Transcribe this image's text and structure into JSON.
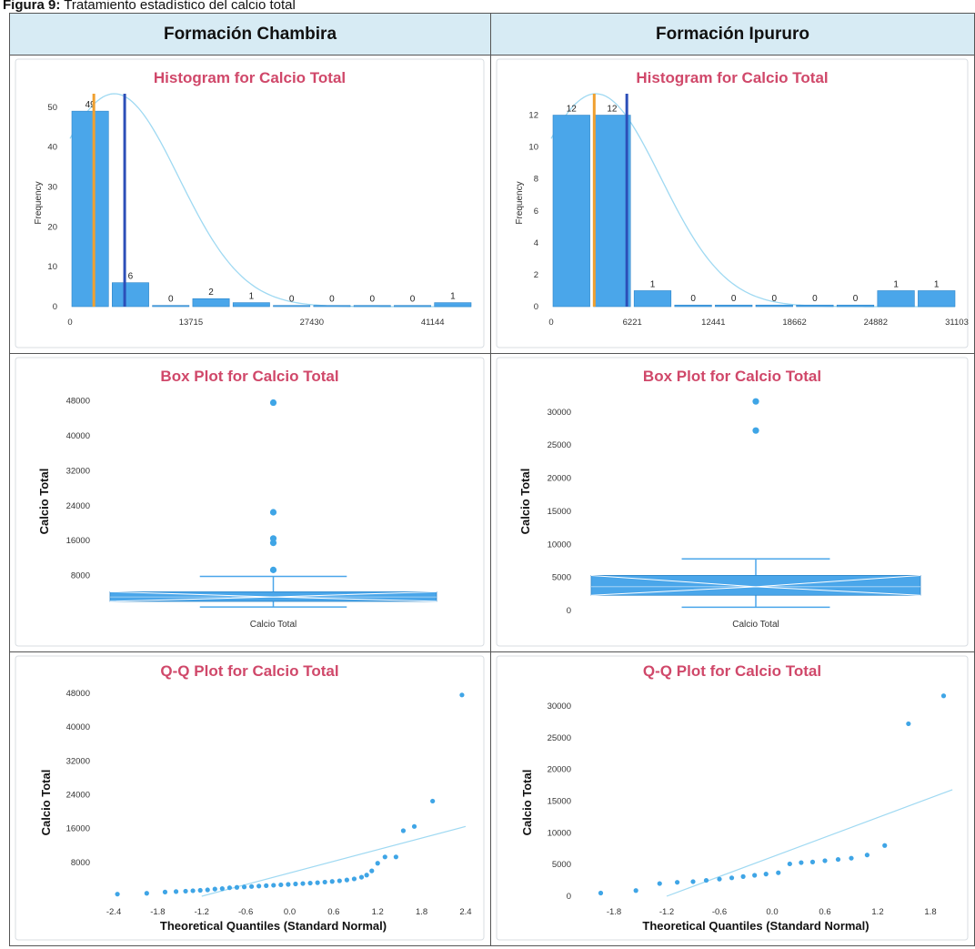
{
  "caption": {
    "label": "Figura 9:",
    "text": "Tratamiento estadístico del calcio total"
  },
  "columns": [
    "Formación Chambira",
    "Formación Ipururo"
  ],
  "chart_data": [
    {
      "id": "hist-chambira",
      "type": "bar",
      "title": "Histogram for Calcio Total",
      "ylabel": "Frequency",
      "ylim": [
        0,
        52
      ],
      "yticks": [
        0,
        10,
        20,
        30,
        40,
        50
      ],
      "xticks": [
        "0",
        "13715",
        "27430",
        "41144"
      ],
      "values": [
        49,
        6,
        0,
        2,
        1,
        0,
        0,
        0,
        0,
        1
      ],
      "bar_labels": [
        "49",
        "6",
        "0",
        "2",
        "1",
        "0",
        "0",
        "0",
        "0",
        "1"
      ],
      "bar_values": [
        49,
        6,
        0.3,
        2,
        1,
        0.3,
        0.3,
        0.3,
        0.3,
        1
      ],
      "xlim": [
        0,
        45716
      ],
      "xtick_values": [
        0,
        13715,
        27430,
        41144
      ],
      "mean_line": 6200,
      "median_line": 2700
    },
    {
      "id": "hist-ipururo",
      "type": "bar",
      "title": "Histogram for Calcio Total",
      "ylabel": "Frequency",
      "ylim": [
        0,
        13
      ],
      "yticks": [
        0,
        2,
        4,
        6,
        8,
        10,
        12
      ],
      "xticks": [
        "0",
        "6221",
        "12441",
        "18662",
        "24882",
        "31103"
      ],
      "values": [
        12,
        12,
        1,
        0,
        0,
        0,
        0,
        0,
        1,
        1
      ],
      "bar_labels": [
        "12",
        "12",
        "1",
        "0",
        "0",
        "0",
        "0",
        "0",
        "1",
        "1"
      ],
      "bar_values": [
        12,
        12,
        1,
        0.1,
        0.1,
        0.1,
        0.1,
        0.1,
        1,
        1
      ],
      "xlim": [
        0,
        31103
      ],
      "xtick_values": [
        0,
        6221,
        12441,
        18662,
        24882,
        31103
      ],
      "mean_line": 5800,
      "median_line": 3300
    },
    {
      "id": "box-chambira",
      "type": "box",
      "title": "Box Plot for Calcio Total",
      "ylabel": "Calcio Total",
      "xlabel": "Calcio Total",
      "ylim": [
        0,
        50000
      ],
      "yticks": [
        8000,
        16000,
        24000,
        32000,
        40000,
        48000
      ],
      "whisker_low": 800,
      "q1": 2100,
      "median": 3100,
      "q3": 4300,
      "whisker_high": 7800,
      "outliers": [
        9300,
        15500,
        16500,
        22500,
        47600
      ]
    },
    {
      "id": "box-ipururo",
      "type": "box",
      "title": "Box Plot for Calcio Total",
      "ylabel": "Calcio Total",
      "xlabel": "Calcio Total",
      "ylim": [
        0,
        33000
      ],
      "yticks": [
        0,
        5000,
        10000,
        15000,
        20000,
        25000,
        30000
      ],
      "whisker_low": 500,
      "q1": 2300,
      "median": 3600,
      "q3": 5300,
      "whisker_high": 7800,
      "outliers": [
        27200,
        31600
      ]
    },
    {
      "id": "qq-chambira",
      "type": "scatter",
      "title": "Q-Q Plot for Calcio Total",
      "xlabel": "Theoretical Quantiles (Standard Normal)",
      "ylabel": "Calcio Total",
      "xlim": [
        -2.5,
        2.5
      ],
      "ylim": [
        0,
        49500
      ],
      "xticks": [
        -2.4,
        -1.8,
        -1.2,
        -0.6,
        0.0,
        0.6,
        1.2,
        1.8,
        2.4
      ],
      "xtick_labels": [
        "-2.4",
        "-1.8",
        "-1.2",
        "-0.6",
        "0.0",
        "0.6",
        "1.2",
        "1.8",
        "2.4"
      ],
      "yticks": [
        8000,
        16000,
        24000,
        32000,
        40000,
        48000
      ],
      "ref_line": [
        [
          -1.2,
          0
        ],
        [
          2.4,
          16500
        ]
      ],
      "points": [
        [
          -2.35,
          500
        ],
        [
          -1.95,
          700
        ],
        [
          -1.7,
          1000
        ],
        [
          -1.55,
          1100
        ],
        [
          -1.42,
          1200
        ],
        [
          -1.32,
          1300
        ],
        [
          -1.22,
          1400
        ],
        [
          -1.12,
          1500
        ],
        [
          -1.02,
          1700
        ],
        [
          -0.92,
          1800
        ],
        [
          -0.82,
          2000
        ],
        [
          -0.72,
          2100
        ],
        [
          -0.62,
          2200
        ],
        [
          -0.52,
          2300
        ],
        [
          -0.42,
          2400
        ],
        [
          -0.32,
          2500
        ],
        [
          -0.22,
          2600
        ],
        [
          -0.12,
          2700
        ],
        [
          -0.02,
          2800
        ],
        [
          0.08,
          2900
        ],
        [
          0.18,
          3000
        ],
        [
          0.28,
          3100
        ],
        [
          0.38,
          3200
        ],
        [
          0.48,
          3350
        ],
        [
          0.58,
          3500
        ],
        [
          0.68,
          3650
        ],
        [
          0.78,
          3850
        ],
        [
          0.88,
          4100
        ],
        [
          0.98,
          4500
        ],
        [
          1.05,
          5000
        ],
        [
          1.12,
          6000
        ],
        [
          1.2,
          7800
        ],
        [
          1.3,
          9300
        ],
        [
          1.45,
          9300
        ],
        [
          1.55,
          15500
        ],
        [
          1.7,
          16500
        ],
        [
          1.95,
          22500
        ],
        [
          2.35,
          47600
        ]
      ]
    },
    {
      "id": "qq-ipururo",
      "type": "scatter",
      "title": "Q-Q Plot for Calcio Total",
      "xlabel": "Theoretical Quantiles (Standard Normal)",
      "ylabel": "Calcio Total",
      "xlim": [
        -2.1,
        2.1
      ],
      "ylim": [
        0,
        33000
      ],
      "xticks": [
        -1.8,
        -1.2,
        -0.6,
        0.0,
        0.6,
        1.2,
        1.8
      ],
      "xtick_labels": [
        "-1.8",
        "-1.2",
        "-0.6",
        "0.0",
        "0.6",
        "1.2",
        "1.8"
      ],
      "yticks": [
        0,
        5000,
        10000,
        15000,
        20000,
        25000,
        30000
      ],
      "ref_line": [
        [
          -1.2,
          0
        ],
        [
          2.05,
          16800
        ]
      ],
      "points": [
        [
          -1.95,
          500
        ],
        [
          -1.55,
          900
        ],
        [
          -1.28,
          2000
        ],
        [
          -1.08,
          2200
        ],
        [
          -0.9,
          2300
        ],
        [
          -0.75,
          2500
        ],
        [
          -0.6,
          2700
        ],
        [
          -0.46,
          2900
        ],
        [
          -0.33,
          3100
        ],
        [
          -0.2,
          3300
        ],
        [
          -0.07,
          3500
        ],
        [
          0.07,
          3700
        ],
        [
          0.2,
          5100
        ],
        [
          0.33,
          5300
        ],
        [
          0.46,
          5400
        ],
        [
          0.6,
          5600
        ],
        [
          0.75,
          5800
        ],
        [
          0.9,
          6000
        ],
        [
          1.08,
          6500
        ],
        [
          1.28,
          8000
        ],
        [
          1.55,
          27200
        ],
        [
          1.95,
          31600
        ]
      ]
    }
  ]
}
